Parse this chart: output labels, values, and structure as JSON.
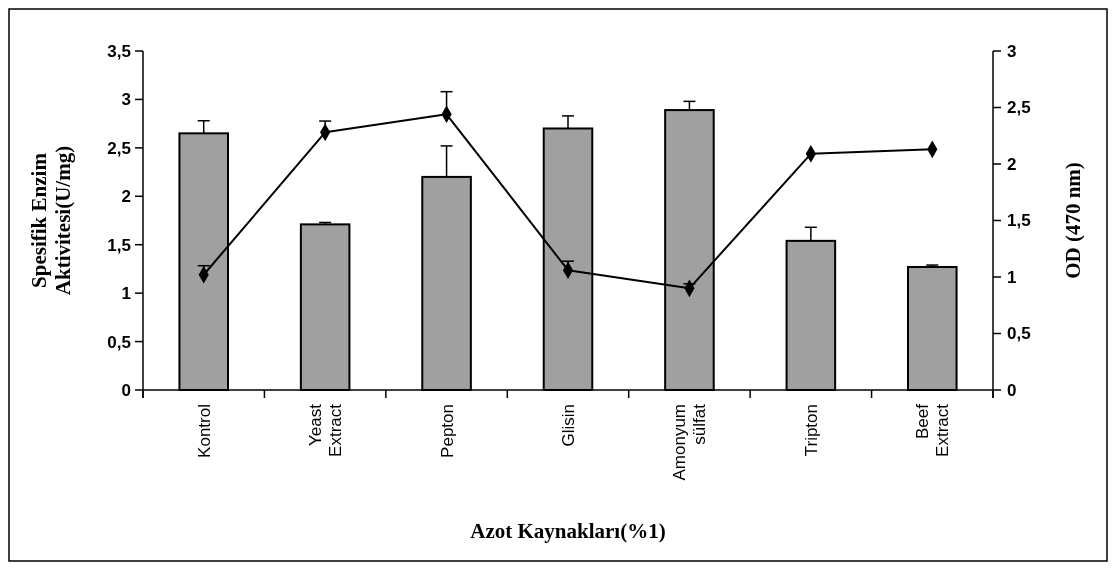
{
  "chart_data": {
    "type": "bar",
    "xlabel": "Azot Kaynakları(%1)",
    "ylabel": "Spesifik Enzim Aktivitesi(U/mg)",
    "y2label": "OD (470 nm)",
    "categories": [
      "Kontrol",
      "Yeast Extract",
      "Pepton",
      "Glisin",
      "Amonyum sülfat",
      "Tripton",
      "Beef Extract"
    ],
    "series": [
      {
        "color": "#a0a0a0",
        "values": [
          2.65,
          1.71,
          2.2,
          2.7,
          2.89,
          1.54,
          1.27
        ],
        "errors": [
          [
            2.65,
            2.78
          ],
          [
            1.71,
            1.73
          ],
          [
            2.2,
            2.52
          ],
          [
            2.7,
            2.83
          ],
          [
            2.89,
            2.98
          ],
          [
            1.54,
            1.68
          ],
          [
            1.27,
            1.29
          ]
        ]
      },
      {
        "type": "line",
        "axis": "y2",
        "color": "#000000",
        "marker": "diamond",
        "values": [
          1.02,
          2.28,
          2.44,
          1.06,
          0.9,
          2.09,
          2.13
        ],
        "errors": [
          [
            1.02,
            1.1
          ],
          [
            2.28,
            2.38
          ],
          [
            2.44,
            2.64
          ],
          [
            1.06,
            1.14
          ],
          [
            0.9,
            0.94
          ],
          null,
          null
        ]
      }
    ],
    "ylim": [
      0,
      3.5
    ],
    "yticks": [
      0,
      {
        "value": 0.5,
        "label": "0,5"
      },
      1,
      {
        "value": 1.5,
        "label": "1,5"
      },
      2,
      {
        "value": 2.5,
        "label": "2,5"
      },
      3,
      {
        "value": 3.5,
        "label": "3,5"
      }
    ],
    "y2lim": [
      0,
      3
    ],
    "y2ticks": [
      0,
      {
        "value": 0.5,
        "label": "0,5"
      },
      1,
      {
        "value": 1.5,
        "label": "1,5"
      },
      2,
      {
        "value": 2.5,
        "label": "2,5"
      },
      3
    ],
    "grid": false
  }
}
